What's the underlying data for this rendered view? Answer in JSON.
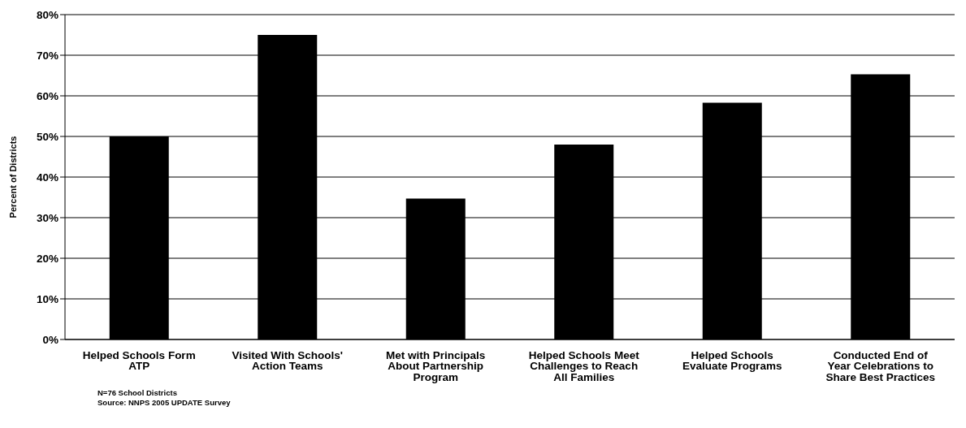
{
  "chart_data": {
    "type": "bar",
    "ylabel": "Percent of Districts",
    "categories": [
      "Helped Schools Form ATP",
      "Visited With Schools' Action Teams",
      "Met with Principals About Partnership Program",
      "Helped Schools Meet Challenges to Reach All Families",
      "Helped Schools Evaluate Programs",
      "Conducted End of Year Celebrations to Share Best Practices"
    ],
    "values": [
      50,
      75,
      34.7,
      48,
      58.3,
      65.3
    ],
    "color": "#000000",
    "ylim": [
      0,
      80
    ],
    "yticks": [
      {
        "value": 0,
        "label": "0%"
      },
      {
        "value": 10,
        "label": "10%"
      },
      {
        "value": 20,
        "label": "20%"
      },
      {
        "value": 30,
        "label": "30%"
      },
      {
        "value": 40,
        "label": "40%"
      },
      {
        "value": 50,
        "label": "50%"
      },
      {
        "value": 60,
        "label": "60%"
      },
      {
        "value": 70,
        "label": "70%"
      },
      {
        "value": 80,
        "label": "80%"
      }
    ],
    "grid": "y",
    "legend": false,
    "annotations": [
      "N=76 School Districts",
      "Source: NNPS 2005 UPDATE Survey"
    ]
  }
}
